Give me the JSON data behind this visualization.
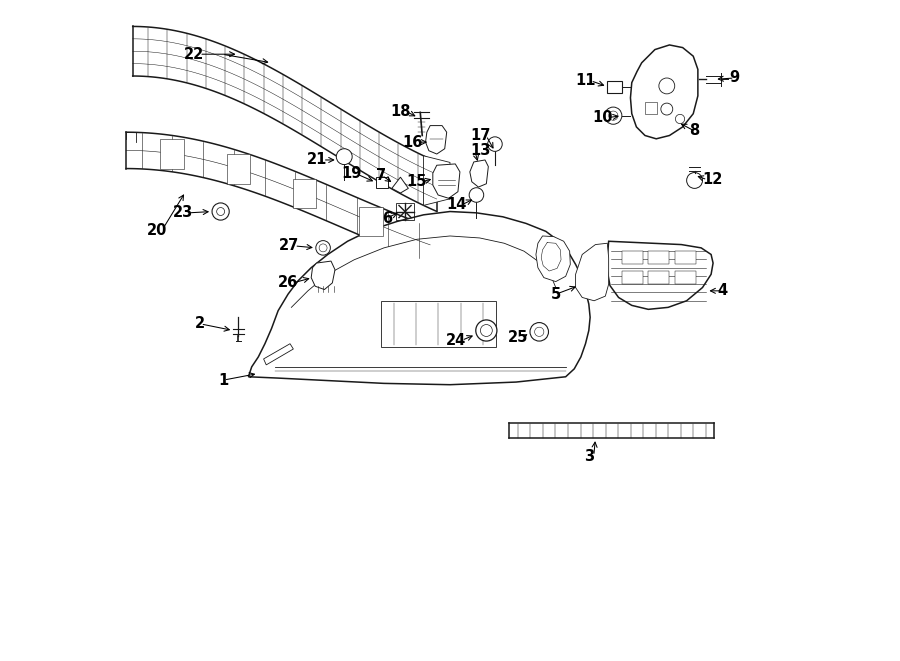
{
  "background_color": "#ffffff",
  "line_color": "#1a1a1a",
  "figsize": [
    9.0,
    6.61
  ],
  "dpi": 100,
  "lw_main": 1.1,
  "lw_thin": 0.6,
  "lw_detail": 0.4,
  "font_size": 10.5
}
